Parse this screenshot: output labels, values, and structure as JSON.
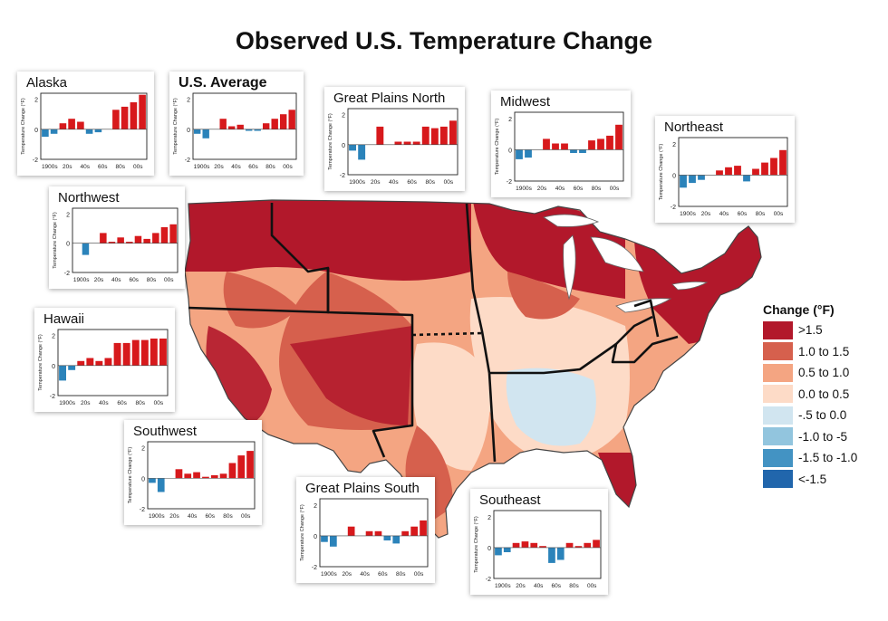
{
  "title": "Observed U.S. Temperature Change",
  "axis_label": "Temperature Change (°F)",
  "y_ticks": [
    "2",
    "0",
    "-2"
  ],
  "decade_labels": [
    "1900s",
    "20s",
    "40s",
    "60s",
    "80s",
    "00s"
  ],
  "legend": {
    "title": "Change (°F)",
    "items": [
      {
        "label": ">1.5",
        "color": "#b2182b"
      },
      {
        "label": "1.0 to 1.5",
        "color": "#d6604d"
      },
      {
        "label": "0.5 to 1.0",
        "color": "#f4a582"
      },
      {
        "label": "0.0 to 0.5",
        "color": "#fddbc7"
      },
      {
        "label": "-.5 to 0.0",
        "color": "#d1e5f0"
      },
      {
        "label": "-1.0 to -5",
        "color": "#92c5de"
      },
      {
        "label": "-1.5 to -1.0",
        "color": "#4393c3"
      },
      {
        "label": "<-1.5",
        "color": "#2166ac"
      }
    ]
  },
  "chart_data": [
    {
      "type": "bar",
      "title": "Alaska",
      "ylim": [
        -2,
        2.4
      ],
      "values": [
        -0.5,
        -0.3,
        0.4,
        0.7,
        0.5,
        -0.3,
        -0.2,
        0.0,
        1.3,
        1.5,
        1.8,
        2.3
      ]
    },
    {
      "type": "bar",
      "title": "U.S. Average",
      "ylim": [
        -2,
        2.4
      ],
      "values": [
        -0.3,
        -0.6,
        0.0,
        0.7,
        0.2,
        0.3,
        -0.1,
        -0.1,
        0.4,
        0.7,
        1.0,
        1.3
      ]
    },
    {
      "type": "bar",
      "title": "Great Plains North",
      "ylim": [
        -2,
        2.4
      ],
      "values": [
        -0.4,
        -1.0,
        0.0,
        1.2,
        0.0,
        0.2,
        0.2,
        0.2,
        1.2,
        1.1,
        1.2,
        1.6
      ]
    },
    {
      "type": "bar",
      "title": "Midwest",
      "ylim": [
        -2,
        2.4
      ],
      "values": [
        -0.6,
        -0.5,
        0.0,
        0.7,
        0.4,
        0.4,
        -0.2,
        -0.2,
        0.6,
        0.7,
        0.9,
        1.6
      ]
    },
    {
      "type": "bar",
      "title": "Northeast",
      "ylim": [
        -2,
        2.4
      ],
      "values": [
        -0.8,
        -0.5,
        -0.3,
        0.0,
        0.3,
        0.5,
        0.6,
        -0.4,
        0.4,
        0.8,
        1.1,
        1.6
      ]
    },
    {
      "type": "bar",
      "title": "Northwest",
      "ylim": [
        -2,
        2.4
      ],
      "values": [
        0.0,
        -0.8,
        0.0,
        0.7,
        0.1,
        0.4,
        0.1,
        0.5,
        0.3,
        0.7,
        1.1,
        1.3
      ]
    },
    {
      "type": "bar",
      "title": "Hawaii",
      "ylim": [
        -2,
        2.4
      ],
      "values": [
        -1.0,
        -0.3,
        0.3,
        0.5,
        0.3,
        0.5,
        1.5,
        1.5,
        1.7,
        1.7,
        1.8,
        1.8
      ]
    },
    {
      "type": "bar",
      "title": "Southwest",
      "ylim": [
        -2,
        2.4
      ],
      "values": [
        -0.3,
        -0.9,
        0.0,
        0.6,
        0.3,
        0.4,
        0.1,
        0.2,
        0.3,
        1.0,
        1.5,
        1.8
      ]
    },
    {
      "type": "bar",
      "title": "Great Plains South",
      "ylim": [
        -2,
        2.4
      ],
      "values": [
        -0.4,
        -0.7,
        0.0,
        0.6,
        0.0,
        0.3,
        0.3,
        -0.3,
        -0.5,
        0.3,
        0.6,
        1.0
      ]
    },
    {
      "type": "bar",
      "title": "Southeast",
      "ylim": [
        -2,
        2.4
      ],
      "values": [
        -0.5,
        -0.3,
        0.3,
        0.4,
        0.3,
        0.1,
        -1.0,
        -0.8,
        0.3,
        0.1,
        0.3,
        0.5
      ]
    }
  ]
}
